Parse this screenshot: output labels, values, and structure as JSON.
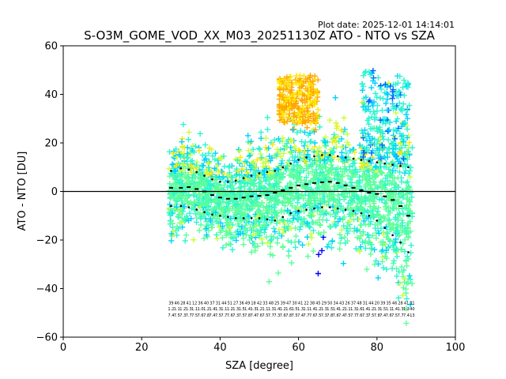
{
  "chart_data": {
    "type": "scatter",
    "title": "S-O3M_GOME_VOD_XX_M03_20251130Z ATO - NTO vs SZA",
    "subtitle": "Plot date: 2025-12-01 14:14:01",
    "xlabel": "SZA [degree]",
    "ylabel": "ATO - NTO [DU]",
    "xlim": [
      0,
      100
    ],
    "ylim": [
      -60,
      60
    ],
    "xticks": [
      0,
      20,
      40,
      60,
      80,
      100
    ],
    "yticks": [
      -60,
      -40,
      -20,
      0,
      20,
      40,
      60
    ],
    "grid": false,
    "zero_line": 0,
    "point_cloud": {
      "sza_range": [
        27,
        89
      ],
      "colors": [
        "#5cff9a",
        "#2ef5d0",
        "#00d2ff",
        "#c8ff3a",
        "#ffe600",
        "#ffa500",
        "#0064ff",
        "#0000ff"
      ]
    },
    "series": [
      {
        "name": "median",
        "style": "black-dash",
        "x": [
          27.5,
          30,
          32,
          34,
          36,
          38,
          40,
          42,
          44,
          46,
          48,
          50,
          52,
          54,
          56,
          58,
          60,
          62,
          64,
          66,
          68,
          70,
          72,
          74,
          76,
          78,
          80,
          82,
          84,
          86,
          88
        ],
        "y": [
          1.5,
          1.5,
          1.8,
          1.0,
          0.0,
          -1.5,
          -2.5,
          -3.0,
          -3.0,
          -2.5,
          -2.0,
          -1.8,
          -1.5,
          -0.5,
          0.5,
          1.5,
          2.5,
          3.0,
          3.5,
          3.8,
          4.0,
          3.5,
          2.5,
          1.5,
          0.5,
          -0.5,
          -1.0,
          -2.0,
          -3.5,
          -6.0,
          -10.0
        ]
      },
      {
        "name": "median + std",
        "style": "black-dot",
        "x": [
          27.5,
          30,
          32,
          34,
          36,
          38,
          40,
          42,
          44,
          46,
          48,
          50,
          52,
          54,
          56,
          58,
          60,
          62,
          64,
          66,
          68,
          70,
          72,
          74,
          76,
          78,
          80,
          82,
          84,
          86,
          88
        ],
        "y": [
          8.5,
          9.5,
          9.0,
          8.0,
          6.5,
          5.0,
          4.0,
          4.0,
          4.5,
          5.5,
          6.5,
          7.5,
          8.0,
          8.5,
          10.0,
          11.5,
          13.0,
          14.0,
          14.5,
          15.0,
          15.0,
          14.5,
          14.0,
          13.5,
          13.0,
          12.5,
          12.0,
          11.5,
          11.0,
          10.5,
          10.0
        ]
      },
      {
        "name": "median - std",
        "style": "black-dot",
        "x": [
          27.5,
          30,
          32,
          34,
          36,
          38,
          40,
          42,
          44,
          46,
          48,
          50,
          52,
          54,
          56,
          58,
          60,
          62,
          64,
          66,
          68,
          70,
          72,
          74,
          76,
          78,
          80,
          82,
          84,
          86,
          88
        ],
        "y": [
          -6.0,
          -6.0,
          -6.5,
          -7.5,
          -8.5,
          -9.5,
          -10.0,
          -10.5,
          -11.0,
          -11.0,
          -11.0,
          -11.0,
          -11.5,
          -12.0,
          -10.5,
          -9.0,
          -8.0,
          -7.5,
          -7.0,
          -6.5,
          -6.5,
          -7.0,
          -7.5,
          -8.0,
          -9.0,
          -10.0,
          -12.0,
          -15.0,
          -18.0,
          -21.0,
          -25.0
        ]
      }
    ],
    "annotations": {
      "x": [
        27.5,
        29,
        30.5,
        32,
        33.5,
        35,
        36.5,
        38,
        39.5,
        41,
        42.5,
        44,
        45.5,
        47,
        48.5,
        50,
        51.5,
        53,
        54.5,
        56,
        57.5,
        59,
        60.5,
        62,
        63.5,
        65,
        66.5,
        68,
        69.5,
        71,
        72.5,
        74,
        75.5,
        77,
        78.5,
        80,
        81.5,
        83,
        84.5,
        86,
        87.5,
        89
      ],
      "row1": [
        "39",
        "46",
        "28",
        "41",
        "12",
        "36",
        "40",
        "37",
        "31",
        "44",
        "51",
        "27",
        "36",
        "49",
        "18",
        "42",
        "33",
        "48",
        "25",
        "39",
        "47",
        "30",
        "41",
        "22",
        "38",
        "45",
        "29",
        "50",
        "34",
        "43",
        "26",
        "37",
        "48",
        "31",
        "44",
        "20",
        "39",
        "35",
        "46",
        "28",
        "41",
        "31"
      ],
      "row2": [
        "1.2",
        "1.1",
        "1.2",
        "1.3",
        "1.1",
        "1.0",
        "1.2",
        "1.4",
        "1.3",
        "1.1",
        "1.2",
        "1.3",
        "1.5",
        "1.4",
        "1.3",
        "1.2",
        "1.1",
        "1.3",
        "1.4",
        "1.2",
        "1.6",
        "1.5",
        "1.3",
        "1.1",
        "1.4",
        "1.2",
        "1.3",
        "1.5",
        "1.4",
        "1.2",
        "1.1",
        "1.3",
        "1.6",
        "1.4",
        "1.2",
        "1.3",
        "1.5",
        "1.1",
        "1.4",
        "1.3",
        "1.2",
        "40"
      ],
      "row3": [
        "7.4",
        "7.5",
        "7.3",
        "7.7",
        "7.5",
        "7.6",
        "7.8",
        "7.4",
        "7.5",
        "7.7",
        "7.6",
        "7.3",
        "7.5",
        "7.8",
        "7.4",
        "7.6",
        "7.5",
        "7.7",
        "7.3",
        "7.6",
        "7.8",
        "7.5",
        "7.4",
        "7.7",
        "7.6",
        "7.5",
        "7.3",
        "7.8",
        "7.6",
        "7.4",
        "7.5",
        "7.7",
        "7.6",
        "7.3",
        "7.5",
        "7.8",
        "7.4",
        "7.6",
        "7.5",
        "7.7",
        "7.4",
        "13"
      ]
    }
  }
}
